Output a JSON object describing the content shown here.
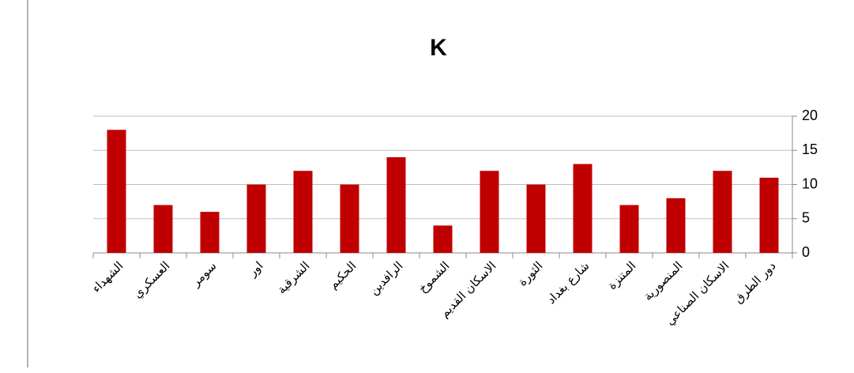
{
  "chart_data": {
    "type": "bar",
    "title": "K",
    "categories": [
      "الشهداء",
      "العسكري",
      "سومر",
      "اور",
      "الشرقية",
      "الحكيم",
      "الرافدين",
      "الشموخ",
      "الاسكان القديم",
      "الثورة",
      "شارع بغداد",
      "المتنزة",
      "المنصورية",
      "الاسكان الصناعي",
      "دور الطرق"
    ],
    "values": [
      18,
      7,
      6,
      10,
      12,
      10,
      14,
      4,
      12,
      10,
      13,
      7,
      8,
      12,
      11
    ],
    "color": "#c00000",
    "ylim": [
      0,
      20
    ],
    "yticks": [
      0,
      5,
      10,
      15,
      20
    ],
    "grid": true,
    "y_axis_side": "right"
  }
}
